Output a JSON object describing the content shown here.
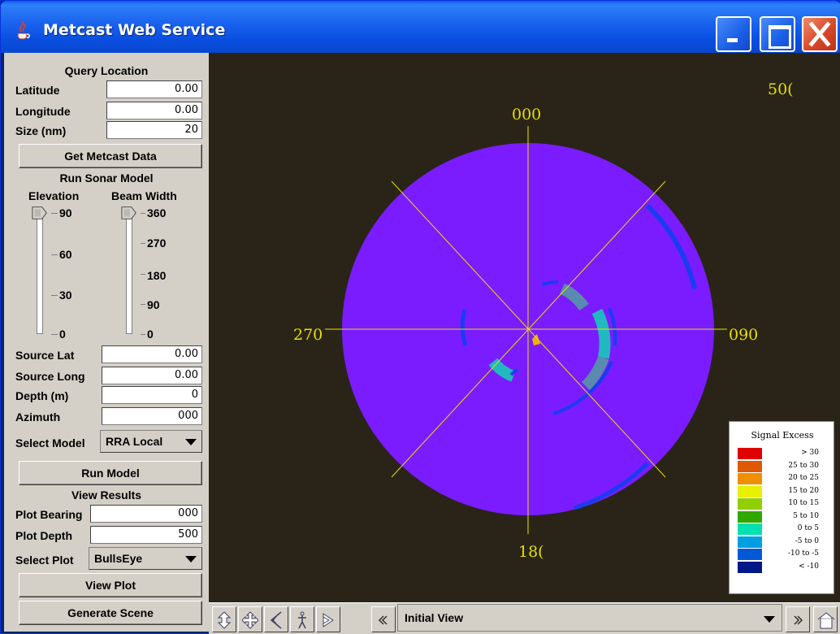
{
  "window": {
    "title": "Metcast Web Service"
  },
  "query_location": {
    "title": "Query Location",
    "fields": [
      {
        "label": "Latitude",
        "value": "0.00"
      },
      {
        "label": "Longitude",
        "value": "0.00"
      },
      {
        "label": "Size (nm)",
        "value": "20"
      }
    ],
    "button": "Get Metcast Data"
  },
  "sonar_model": {
    "title": "Run Sonar Model",
    "elevation": {
      "label": "Elevation",
      "ticks": [
        "90",
        "60",
        "30",
        "0"
      ],
      "value": 90
    },
    "beam_width": {
      "label": "Beam Width",
      "ticks": [
        "360",
        "270",
        "180",
        "90",
        "0"
      ],
      "value": 360
    },
    "fields": [
      {
        "label": "Source Lat",
        "value": "0.00"
      },
      {
        "label": "Source Long",
        "value": "0.00"
      },
      {
        "label": "Depth (m)",
        "value": "0"
      },
      {
        "label": "Azimuth",
        "value": "000"
      }
    ],
    "select_label": "Select Model",
    "select_value": "RRA Local",
    "button": "Run Model"
  },
  "view_results": {
    "title": "View Results",
    "fields": [
      {
        "label": "Plot Bearing",
        "value": "000"
      },
      {
        "label": "Plot Depth",
        "value": "500"
      }
    ],
    "select_label": "Select Plot",
    "select_value": "BullsEye",
    "button_view": "View Plot",
    "button_generate": "Generate Scene"
  },
  "plot": {
    "range_label": "50(",
    "bearings": {
      "north": "000",
      "east": "090",
      "south": "18(",
      "west": "270"
    },
    "colors": {
      "background": "#2a2418",
      "disc": "#7a1cff",
      "axes": "#e8e000"
    }
  },
  "legend": {
    "title": "Signal Excess",
    "entries": [
      {
        "label": "> 30",
        "color": "#e00000"
      },
      {
        "label": "25 to 30",
        "color": "#e05800"
      },
      {
        "label": "20 to 25",
        "color": "#f09000"
      },
      {
        "label": "15 to 20",
        "color": "#e8f000"
      },
      {
        "label": "10 to 15",
        "color": "#90d000"
      },
      {
        "label": "5 to 10",
        "color": "#30a800"
      },
      {
        "label": "0 to 5",
        "color": "#00e0b0"
      },
      {
        "label": "-5 to 0",
        "color": "#00a0e0"
      },
      {
        "label": "-10 to -5",
        "color": "#005ad8"
      },
      {
        "label": "< -10",
        "color": "#001888"
      }
    ]
  },
  "navbar": {
    "view_select": "Initial View",
    "buttons": [
      "move-up-down-icon",
      "pan-icon",
      "back-icon",
      "walk-icon",
      "forward-icon",
      "previous-viewpoint-icon",
      "next-viewpoint-icon",
      "home-icon"
    ]
  }
}
